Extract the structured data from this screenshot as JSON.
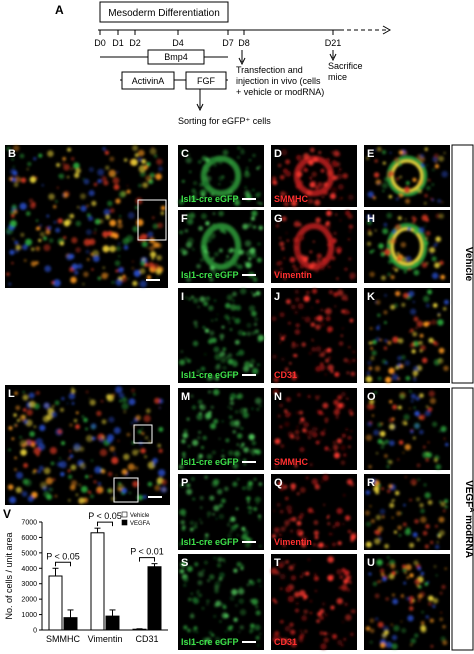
{
  "panel_a": {
    "letter": "A",
    "box": "Mesoderm Differentiation",
    "days": [
      "D0",
      "D1",
      "D2",
      "D4",
      "D7",
      "D8",
      "D21"
    ],
    "factors": [
      "Bmp4",
      "ActivinA",
      "FGF"
    ],
    "transfection": [
      "Transfection and",
      "injection in vivo (cells",
      "+ vehicle or modRNA)"
    ],
    "sacrifice": [
      "Sacrifice",
      "mice"
    ],
    "sorting": "Sorting for eGFP⁺ cells"
  },
  "images": [
    {
      "letter": "B"
    },
    {
      "letter": "C",
      "label": "Isl1-cre eGFP"
    },
    {
      "letter": "D",
      "label": "SMMHC"
    },
    {
      "letter": "E"
    },
    {
      "letter": "F",
      "label": "Isl1-cre eGFP"
    },
    {
      "letter": "G",
      "label": "Vimentin"
    },
    {
      "letter": "H"
    },
    {
      "letter": "I",
      "label": "Isl1-cre eGFP"
    },
    {
      "letter": "J",
      "label": "CD31"
    },
    {
      "letter": "K"
    },
    {
      "letter": "L"
    },
    {
      "letter": "M",
      "label": "Isl1-cre eGFP"
    },
    {
      "letter": "N",
      "label": "SMMHC"
    },
    {
      "letter": "O"
    },
    {
      "letter": "P",
      "label": "Isl1-cre eGFP"
    },
    {
      "letter": "Q",
      "label": "Vimentin"
    },
    {
      "letter": "R"
    },
    {
      "letter": "S",
      "label": "Isl1-cre eGFP"
    },
    {
      "letter": "T",
      "label": "CD31"
    },
    {
      "letter": "U"
    }
  ],
  "groups": [
    {
      "base": "Vehicle"
    },
    {
      "base": "VEGF",
      "sup": "A",
      "rest": " modRNA"
    }
  ],
  "chart_data": {
    "type": "bar",
    "letter": "V",
    "ylabel": "No. of cells / unit area",
    "categories": [
      "SMMHC",
      "Vimentin",
      "CD31"
    ],
    "series": [
      {
        "name": "Vehicle",
        "color": "#ffffff",
        "values": [
          3500,
          6300,
          50
        ],
        "errors": [
          500,
          300,
          30
        ]
      },
      {
        "name": "VEGFA",
        "color": "#000000",
        "values": [
          800,
          900,
          4100
        ],
        "errors": [
          500,
          400,
          200
        ]
      }
    ],
    "annotations": [
      "P < 0.05",
      "P < 0.05",
      "P < 0.01"
    ],
    "ylim": [
      0,
      7000
    ],
    "yticks": [
      0,
      1000,
      2000,
      3000,
      4000,
      5000,
      6000,
      7000
    ]
  }
}
